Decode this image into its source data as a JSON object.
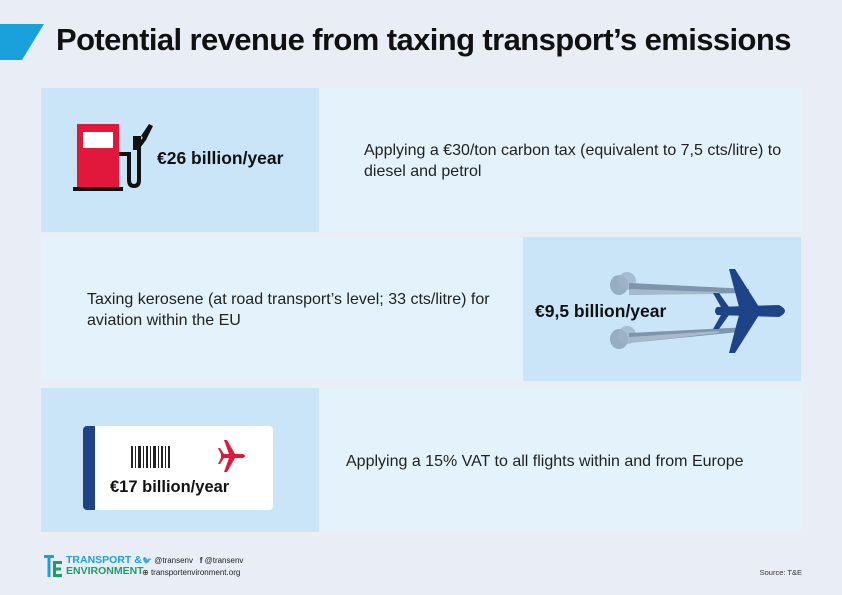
{
  "title": "Potential revenue from taxing transport’s emissions",
  "colors": {
    "accent": "#1aa1dc",
    "dark_blue": "#1e4487",
    "red": "#e2173c",
    "panel_light": "#e4f2fb",
    "panel_dark": "#c9e5f7"
  },
  "rows": [
    {
      "icon": "fuel-pump-icon",
      "amount": "€26 billion/year",
      "description": "Applying a €30/ton carbon tax (equivalent to 7,5 cts/litre) to diesel and petrol"
    },
    {
      "icon": "airplane-icon",
      "amount": "€9,5 billion/year",
      "description": "Taxing kerosene (at road transport’s level; 33 cts/litre) for aviation within the EU"
    },
    {
      "icon": "plane-ticket-icon",
      "amount": "€17 billion/year",
      "description": "Applying a 15% VAT to all flights within and from Europe"
    }
  ],
  "footer": {
    "brand_line1": "TRANSPORT &",
    "brand_line2": "ENVIRONMENT",
    "twitter": "@transenv",
    "facebook": "@transenv",
    "website": "transportenvironment.org",
    "source": "Source: T&E"
  }
}
